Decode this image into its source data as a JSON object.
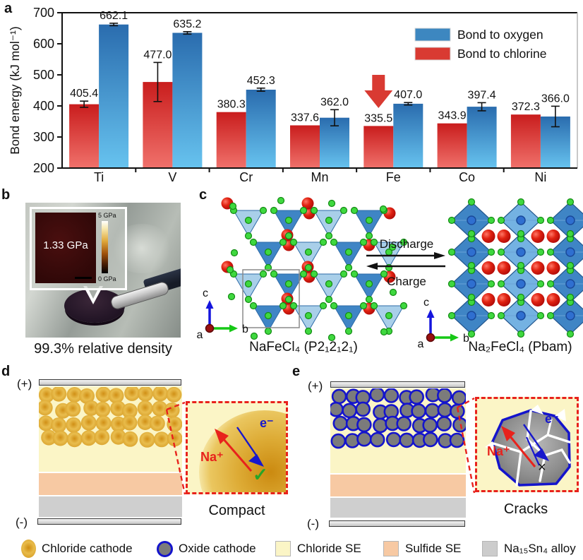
{
  "panels": {
    "a": "a",
    "b": "b",
    "c": "c",
    "d": "d",
    "e": "e"
  },
  "chart_data": {
    "type": "bar",
    "title": "",
    "xlabel": "",
    "ylabel": "Bond energy (kJ mol⁻¹)",
    "ylim": [
      200,
      700
    ],
    "yticks": [
      200,
      300,
      400,
      500,
      600,
      700
    ],
    "categories": [
      "Ti",
      "V",
      "Cr",
      "Mn",
      "Fe",
      "Co",
      "Ni"
    ],
    "series": [
      {
        "name": "Bond to chlorine",
        "legend_color": "#d93a32",
        "color_top": "#c91d1d",
        "color_bottom": "#f0716b",
        "values": [
          405.4,
          477.0,
          380.3,
          337.6,
          335.5,
          343.9,
          372.3
        ],
        "errors": [
          10,
          63,
          0,
          0,
          0,
          0,
          0
        ]
      },
      {
        "name": "Bond to oxygen",
        "legend_color": "#3d87c0",
        "color_top": "#2a6cae",
        "color_bottom": "#67c3ef",
        "values": [
          662.1,
          635.2,
          452.3,
          362.0,
          407.0,
          397.4,
          366.0
        ],
        "errors": [
          4,
          4,
          5,
          26,
          4,
          13,
          33
        ]
      }
    ],
    "legend_order": [
      "Bond to oxygen",
      "Bond to chlorine"
    ],
    "legend_position": "upper right",
    "grid": false,
    "highlight": {
      "category": "Fe",
      "series": "Bond to chlorine",
      "marker": "down-arrow",
      "color": "#d93a32"
    }
  },
  "panel_b": {
    "inset_pressure": "1.33 GPa",
    "scale_top": "5 GPa",
    "scale_bottom": "0 GPa",
    "caption": "99.3% relative density"
  },
  "panel_c": {
    "left_label": "NaFeCl₄ (P2₁2₁2₁)",
    "right_label": "Na₂FeCl₄ (Pbam)",
    "forward": "Discharge",
    "backward": "Charge",
    "axis_a": "a",
    "axis_b": "b",
    "axis_c": "c"
  },
  "panel_d": {
    "positive": "(+)",
    "negative": "(-)",
    "na_label": "Na⁺",
    "e_label": "e⁻",
    "mark": "✓",
    "caption": "Compact"
  },
  "panel_e": {
    "positive": "(+)",
    "negative": "(-)",
    "na_label": "Na⁺",
    "e_label": "e⁻",
    "mark": "×",
    "caption": "Cracks"
  },
  "bottom_legend": {
    "items": [
      {
        "type": "gold-sphere",
        "label": "Chloride cathode"
      },
      {
        "type": "oxide-sphere",
        "label": "Oxide cathode"
      },
      {
        "type": "square",
        "color": "#fbf5c6",
        "label": "Chloride SE"
      },
      {
        "type": "square",
        "color": "#f7c9a3",
        "label": "Sulfide SE"
      },
      {
        "type": "square",
        "color": "#cccccc",
        "label": "Na₁₅Sn₄ alloy"
      }
    ]
  },
  "colors": {
    "chloride_se": "#fbf5c6",
    "sulfide_se": "#f7c9a3",
    "alloy": "#cccccc",
    "bar_red": "#d93a32",
    "bar_blue": "#3d87c0",
    "oxide_ring": "#1414cc",
    "inset_border": "#e8221c"
  }
}
